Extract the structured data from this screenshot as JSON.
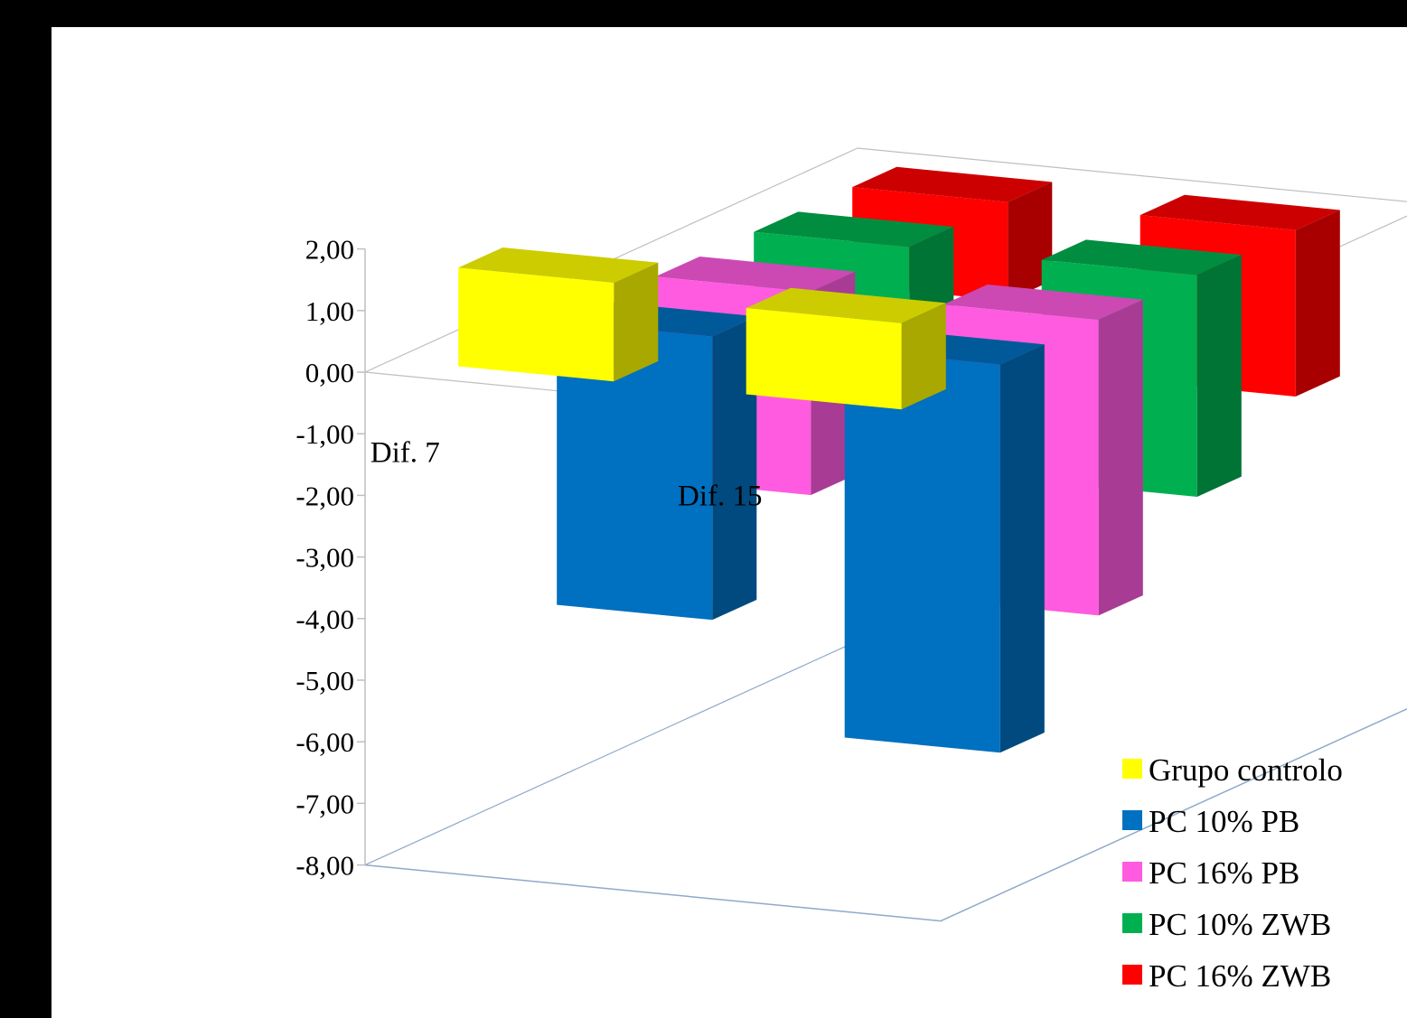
{
  "chart_data": {
    "type": "bar",
    "style": "3d-column",
    "title": "",
    "xlabel": "",
    "ylabel": "",
    "categories": [
      "Dif. 7",
      "Dif. 15"
    ],
    "ylim": [
      -8,
      2
    ],
    "yticks": [
      "2,00",
      "1,00",
      "0,00",
      "-1,00",
      "-2,00",
      "-3,00",
      "-4,00",
      "-5,00",
      "-6,00",
      "-7,00",
      "-8,00"
    ],
    "grid": false,
    "legend_position": "bottom-right",
    "series": [
      {
        "name": "Grupo controlo",
        "color": "#FFFF00",
        "values": [
          1.6,
          1.4
        ]
      },
      {
        "name": "PC 10% PB",
        "color": "#0070C0",
        "values": [
          -4.6,
          -6.3
        ]
      },
      {
        "name": "PC 16% PB",
        "color": "#FF5BE0",
        "values": [
          -3.3,
          -4.8
        ]
      },
      {
        "name": "PC 10% ZWB",
        "color": "#00B050",
        "values": [
          -2.1,
          -3.6
        ]
      },
      {
        "name": "PC 16% ZWB",
        "color": "#FF0000",
        "values": [
          -1.6,
          -2.7
        ]
      }
    ]
  }
}
